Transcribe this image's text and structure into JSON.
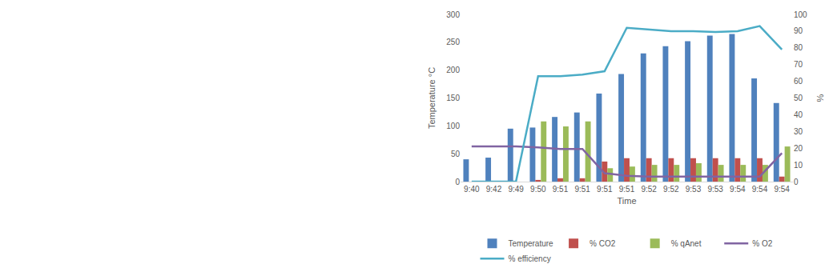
{
  "chart_data": {
    "type": "bar",
    "x_label": "Time",
    "y_label": "Temperature °C",
    "y2_label": "%",
    "categories": [
      "9:40",
      "9:42",
      "9:49",
      "9:50",
      "9:51",
      "9:51",
      "9:51",
      "9:51",
      "9:52",
      "9:52",
      "9:53",
      "9:53",
      "9:54",
      "9:54",
      "9:54"
    ],
    "ylim": [
      0,
      300
    ],
    "yticks": [
      0,
      50,
      100,
      150,
      200,
      250,
      300
    ],
    "y2lim": [
      0,
      100
    ],
    "y2ticks": [
      0,
      10,
      20,
      30,
      40,
      50,
      60,
      70,
      80,
      90,
      100
    ],
    "grid": false,
    "legend": "bottom",
    "series": [
      {
        "name": "Temperature",
        "type": "bar",
        "color": "#4f81bd",
        "values": [
          40,
          43,
          95,
          97,
          116,
          124,
          158,
          193,
          230,
          243,
          252,
          262,
          265,
          185,
          141
        ]
      },
      {
        "name": "% CO2",
        "type": "bar",
        "axis": "y2",
        "color": "#c0504d",
        "values": [
          0,
          0,
          0,
          1,
          2,
          2,
          12,
          14,
          14,
          14,
          14,
          14,
          14,
          14,
          3
        ]
      },
      {
        "name": "% qAnet",
        "type": "bar",
        "axis": "y2",
        "color": "#9bbb59",
        "values": [
          0,
          0,
          0,
          36,
          33,
          36,
          8,
          9,
          10,
          10,
          11,
          10,
          10,
          10,
          21
        ]
      },
      {
        "name": "% O2",
        "type": "line",
        "axis": "y2",
        "color": "#8064a2",
        "values": [
          21,
          21,
          21,
          20.5,
          19.5,
          19.5,
          5,
          3.5,
          3,
          3,
          3,
          3,
          3,
          3,
          17
        ]
      },
      {
        "name": "% efficiency",
        "type": "line",
        "axis": "y2",
        "color": "#4bacc6",
        "values": [
          0,
          0,
          0,
          63,
          63,
          64,
          66,
          92,
          91,
          90,
          90,
          89.5,
          90,
          93,
          79
        ]
      }
    ]
  }
}
